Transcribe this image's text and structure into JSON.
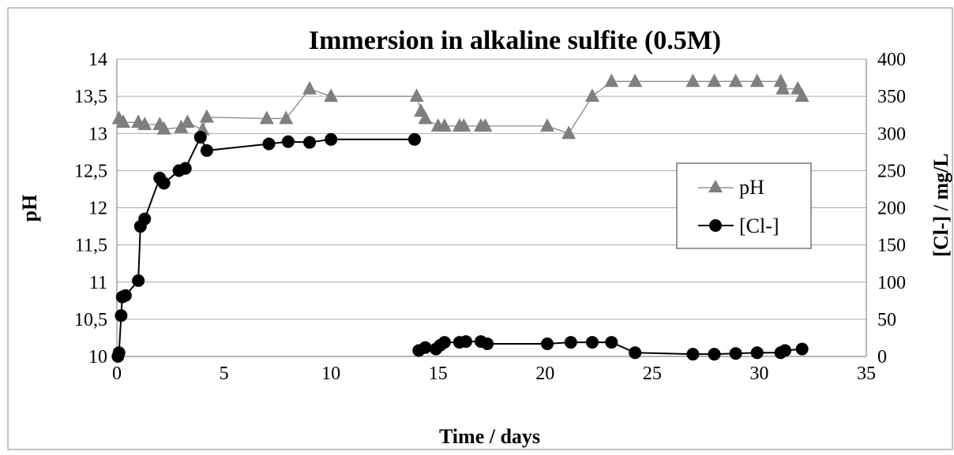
{
  "chart_data": {
    "type": "line",
    "title": "Immersion in alkaline sulfite (0.5M)",
    "xlabel": "Time / days",
    "ylabel": "pH",
    "y2label": "[Cl-] / mg/L",
    "xlim": [
      0,
      35
    ],
    "ylim": [
      10,
      14
    ],
    "y2lim": [
      0,
      400
    ],
    "x_ticks": [
      "0",
      "5",
      "10",
      "15",
      "20",
      "25",
      "30",
      "35"
    ],
    "y_ticks": [
      "10",
      "10,5",
      "11",
      "11,5",
      "12",
      "12,5",
      "13",
      "13,5",
      "14"
    ],
    "y2_ticks": [
      "0",
      "50",
      "100",
      "150",
      "200",
      "250",
      "300",
      "350",
      "400"
    ],
    "grid": "horizontal",
    "legend_position": "right",
    "series": [
      {
        "name": "pH",
        "axis": "left",
        "marker": "triangle",
        "color": "#7f7f7f",
        "points": [
          [
            0.1,
            13.2
          ],
          [
            0.3,
            13.15
          ],
          [
            1.0,
            13.15
          ],
          [
            1.3,
            13.12
          ],
          [
            2.0,
            13.12
          ],
          [
            2.2,
            13.06
          ],
          [
            3.0,
            13.08
          ],
          [
            3.3,
            13.15
          ],
          [
            4.0,
            13.05
          ],
          [
            4.2,
            13.22
          ],
          [
            7.0,
            13.2
          ],
          [
            7.9,
            13.2
          ],
          [
            9.0,
            13.6
          ],
          [
            10.0,
            13.5
          ],
          [
            14.0,
            13.5
          ],
          [
            14.2,
            13.3
          ],
          [
            14.4,
            13.2
          ],
          [
            15.0,
            13.1
          ],
          [
            15.3,
            13.1
          ],
          [
            16.0,
            13.1
          ],
          [
            16.2,
            13.1
          ],
          [
            17.0,
            13.1
          ],
          [
            17.2,
            13.1
          ],
          [
            20.1,
            13.1
          ],
          [
            21.1,
            13.0
          ],
          [
            22.2,
            13.5
          ],
          [
            23.1,
            13.7
          ],
          [
            24.2,
            13.7
          ],
          [
            26.9,
            13.7
          ],
          [
            27.9,
            13.7
          ],
          [
            28.9,
            13.7
          ],
          [
            29.9,
            13.7
          ],
          [
            31.0,
            13.7
          ],
          [
            31.1,
            13.6
          ],
          [
            31.8,
            13.6
          ],
          [
            32.0,
            13.5
          ]
        ]
      },
      {
        "name": "[Cl-]",
        "axis": "right",
        "marker": "circle",
        "color": "#000000",
        "points": [
          [
            0.05,
            0
          ],
          [
            0.1,
            5
          ],
          [
            0.2,
            55
          ],
          [
            0.25,
            80
          ],
          [
            0.4,
            82
          ],
          [
            1.0,
            102
          ],
          [
            1.1,
            175
          ],
          [
            1.3,
            185
          ],
          [
            2.0,
            240
          ],
          [
            2.2,
            233
          ],
          [
            2.9,
            250
          ],
          [
            3.2,
            253
          ],
          [
            3.9,
            295
          ],
          [
            4.2,
            277
          ],
          [
            7.1,
            286
          ],
          [
            8.0,
            289
          ],
          [
            9.0,
            288
          ],
          [
            10.0,
            292
          ],
          [
            13.9,
            292
          ],
          [
            14.1,
            8
          ],
          [
            14.4,
            12
          ],
          [
            14.9,
            10
          ],
          [
            15.1,
            15
          ],
          [
            15.3,
            19
          ],
          [
            16.0,
            19
          ],
          [
            16.3,
            20
          ],
          [
            17.0,
            20
          ],
          [
            17.3,
            17
          ],
          [
            20.1,
            17
          ],
          [
            21.2,
            19
          ],
          [
            22.2,
            19
          ],
          [
            23.1,
            19
          ],
          [
            24.2,
            5
          ],
          [
            26.9,
            3
          ],
          [
            27.9,
            3
          ],
          [
            28.9,
            4
          ],
          [
            29.9,
            5
          ],
          [
            31.0,
            5
          ],
          [
            31.2,
            8
          ],
          [
            32.0,
            10
          ]
        ]
      }
    ]
  }
}
